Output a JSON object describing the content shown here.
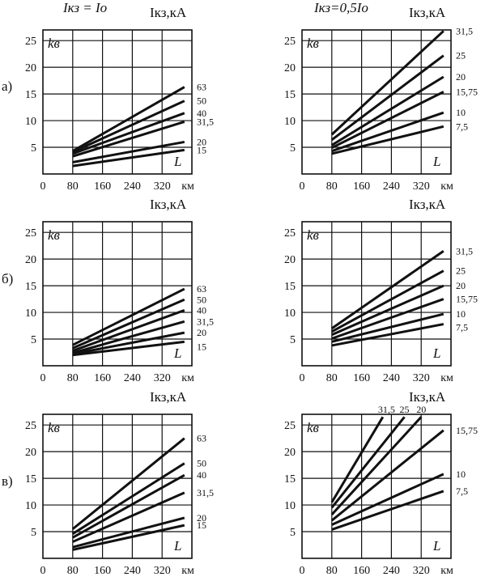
{
  "chart_data": [
    {
      "type": "line",
      "row": "а)",
      "panel": "left",
      "header": "Iкз = Iо",
      "unit_label": "Iкз,кА",
      "ylabel": "kв",
      "xlabel": "L",
      "x_unit": "км",
      "xticks": [
        "0",
        "80",
        "160",
        "240",
        "320"
      ],
      "yticks": [
        "5",
        "10",
        "15",
        "20",
        "25"
      ],
      "xlim": [
        0,
        400
      ],
      "ylim": [
        0,
        27
      ],
      "series": [
        {
          "name": "63",
          "values": [
            [
              80,
              4.3
            ],
            [
              380,
              16.3
            ]
          ]
        },
        {
          "name": "50",
          "values": [
            [
              80,
              4.1
            ],
            [
              380,
              13.7
            ]
          ]
        },
        {
          "name": "40",
          "values": [
            [
              80,
              3.8
            ],
            [
              380,
              11.4
            ]
          ]
        },
        {
          "name": "31,5",
          "values": [
            [
              80,
              3.3
            ],
            [
              380,
              9.8
            ]
          ]
        },
        {
          "name": "20",
          "values": [
            [
              80,
              2.2
            ],
            [
              380,
              6.0
            ]
          ]
        },
        {
          "name": "15",
          "values": [
            [
              80,
              1.5
            ],
            [
              380,
              4.5
            ]
          ]
        }
      ]
    },
    {
      "type": "line",
      "row": "а)",
      "panel": "right",
      "header": "Iкз=0,5Iо",
      "unit_label": "Iкз,кА",
      "ylabel": "kв",
      "xlabel": "L",
      "x_unit": "км",
      "xticks": [
        "0",
        "80",
        "160",
        "240",
        "320"
      ],
      "yticks": [
        "5",
        "10",
        "15",
        "20",
        "25"
      ],
      "xlim": [
        0,
        400
      ],
      "ylim": [
        0,
        27
      ],
      "series": [
        {
          "name": "31,5",
          "values": [
            [
              80,
              7.4
            ],
            [
              380,
              26.8
            ]
          ]
        },
        {
          "name": "25",
          "values": [
            [
              80,
              6.4
            ],
            [
              380,
              22.2
            ]
          ]
        },
        {
          "name": "20",
          "values": [
            [
              80,
              5.4
            ],
            [
              380,
              18.2
            ]
          ]
        },
        {
          "name": "15,75",
          "values": [
            [
              80,
              4.9
            ],
            [
              380,
              15.4
            ]
          ]
        },
        {
          "name": "10",
          "values": [
            [
              80,
              4.3
            ],
            [
              380,
              11.5
            ]
          ]
        },
        {
          "name": "7,5",
          "values": [
            [
              80,
              3.8
            ],
            [
              380,
              8.9
            ]
          ]
        }
      ]
    },
    {
      "type": "line",
      "row": "б)",
      "panel": "left",
      "header": "",
      "unit_label": "Iкз,кА",
      "ylabel": "kв",
      "xlabel": "L",
      "x_unit": "км",
      "xticks": [
        "0",
        "80",
        "160",
        "240",
        "320"
      ],
      "yticks": [
        "5",
        "10",
        "15",
        "20",
        "25"
      ],
      "xlim": [
        0,
        400
      ],
      "ylim": [
        0,
        27
      ],
      "series": [
        {
          "name": "63",
          "values": [
            [
              80,
              3.9
            ],
            [
              380,
              14.4
            ]
          ]
        },
        {
          "name": "50",
          "values": [
            [
              80,
              3.3
            ],
            [
              380,
              12.4
            ]
          ]
        },
        {
          "name": "40",
          "values": [
            [
              80,
              2.8
            ],
            [
              380,
              10.4
            ]
          ]
        },
        {
          "name": "31,5",
          "values": [
            [
              80,
              2.4
            ],
            [
              380,
              8.3
            ]
          ]
        },
        {
          "name": "20",
          "values": [
            [
              80,
              2.2
            ],
            [
              380,
              6.2
            ]
          ]
        },
        {
          "name": "15",
          "values": [
            [
              80,
              2.0
            ],
            [
              380,
              4.5
            ]
          ]
        }
      ]
    },
    {
      "type": "line",
      "row": "б)",
      "panel": "right",
      "header": "",
      "unit_label": "Iкз,кА",
      "ylabel": "kв",
      "xlabel": "L",
      "x_unit": "км",
      "xticks": [
        "0",
        "80",
        "160",
        "240",
        "320"
      ],
      "yticks": [
        "5",
        "10",
        "15",
        "20",
        "25"
      ],
      "xlim": [
        0,
        400
      ],
      "ylim": [
        0,
        27
      ],
      "series": [
        {
          "name": "31,5",
          "values": [
            [
              80,
              7.0
            ],
            [
              380,
              21.5
            ]
          ]
        },
        {
          "name": "25",
          "values": [
            [
              80,
              6.4
            ],
            [
              380,
              17.8
            ]
          ]
        },
        {
          "name": "20",
          "values": [
            [
              80,
              5.8
            ],
            [
              380,
              15.0
            ]
          ]
        },
        {
          "name": "15,75",
          "values": [
            [
              80,
              5.1
            ],
            [
              380,
              12.5
            ]
          ]
        },
        {
          "name": "10",
          "values": [
            [
              80,
              4.5
            ],
            [
              380,
              9.7
            ]
          ]
        },
        {
          "name": "7,5",
          "values": [
            [
              80,
              3.8
            ],
            [
              380,
              7.8
            ]
          ]
        }
      ]
    },
    {
      "type": "line",
      "row": "в)",
      "panel": "left",
      "header": "",
      "unit_label": "Iкз,кА",
      "ylabel": "kв",
      "xlabel": "L",
      "x_unit": "км",
      "xticks": [
        "0",
        "80",
        "160",
        "240",
        "320"
      ],
      "yticks": [
        "5",
        "10",
        "15",
        "20",
        "25"
      ],
      "xlim": [
        0,
        400
      ],
      "ylim": [
        0,
        27
      ],
      "series": [
        {
          "name": "63",
          "values": [
            [
              80,
              5.5
            ],
            [
              380,
              22.5
            ]
          ]
        },
        {
          "name": "50",
          "values": [
            [
              80,
              4.6
            ],
            [
              380,
              17.8
            ]
          ]
        },
        {
          "name": "40",
          "values": [
            [
              80,
              3.9
            ],
            [
              380,
              15.6
            ]
          ]
        },
        {
          "name": "31,5",
          "values": [
            [
              80,
              3.1
            ],
            [
              380,
              12.3
            ]
          ]
        },
        {
          "name": "20",
          "values": [
            [
              80,
              2.1
            ],
            [
              380,
              7.6
            ]
          ]
        },
        {
          "name": "15",
          "values": [
            [
              80,
              1.6
            ],
            [
              380,
              6.2
            ]
          ]
        }
      ]
    },
    {
      "type": "line",
      "row": "в)",
      "panel": "right",
      "header": "",
      "unit_label": "Iкз,кА",
      "ylabel": "kв",
      "xlabel": "L",
      "x_unit": "км",
      "xticks": [
        "0",
        "80",
        "160",
        "240",
        "320"
      ],
      "yticks": [
        "5",
        "10",
        "15",
        "20",
        "25"
      ],
      "xlim": [
        0,
        400
      ],
      "ylim": [
        0,
        27
      ],
      "series": [
        {
          "name": "31,5",
          "values": [
            [
              80,
              10.5
            ],
            [
              217,
              26.5
            ]
          ]
        },
        {
          "name": "25",
          "values": [
            [
              80,
              9.5
            ],
            [
              275,
              26.5
            ]
          ]
        },
        {
          "name": "20",
          "values": [
            [
              80,
              8.2
            ],
            [
              320,
              26.5
            ]
          ]
        },
        {
          "name": "15,75",
          "values": [
            [
              80,
              7.1
            ],
            [
              380,
              24.0
            ]
          ]
        },
        {
          "name": "10",
          "values": [
            [
              80,
              6.3
            ],
            [
              380,
              15.8
            ]
          ]
        },
        {
          "name": "7,5",
          "values": [
            [
              80,
              5.4
            ],
            [
              380,
              12.6
            ]
          ]
        }
      ]
    }
  ]
}
